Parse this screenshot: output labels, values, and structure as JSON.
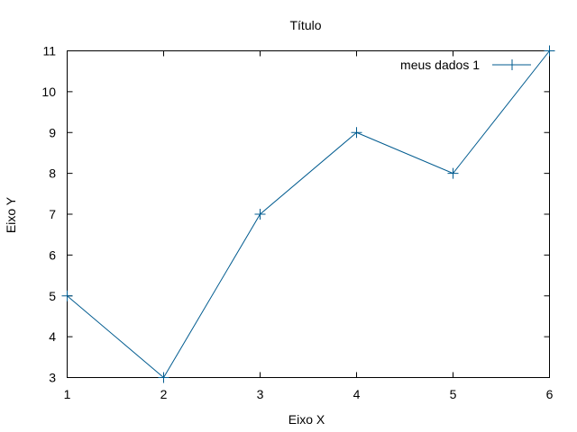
{
  "chart_data": {
    "type": "line",
    "title": "Título",
    "xlabel": "Eixo X",
    "ylabel": "Eixo Y",
    "xlim": [
      1,
      6
    ],
    "ylim": [
      3,
      11
    ],
    "x_ticks": [
      1,
      2,
      3,
      4,
      5,
      6
    ],
    "y_ticks": [
      3,
      4,
      5,
      6,
      7,
      8,
      9,
      10,
      11
    ],
    "grid": false,
    "legend_position": "top-right",
    "series": [
      {
        "name": "meus dados 1",
        "color": "#005b8f",
        "marker": "plus",
        "x": [
          1,
          2,
          3,
          4,
          5,
          6
        ],
        "y": [
          5,
          3,
          7,
          9,
          8,
          11
        ]
      }
    ]
  }
}
